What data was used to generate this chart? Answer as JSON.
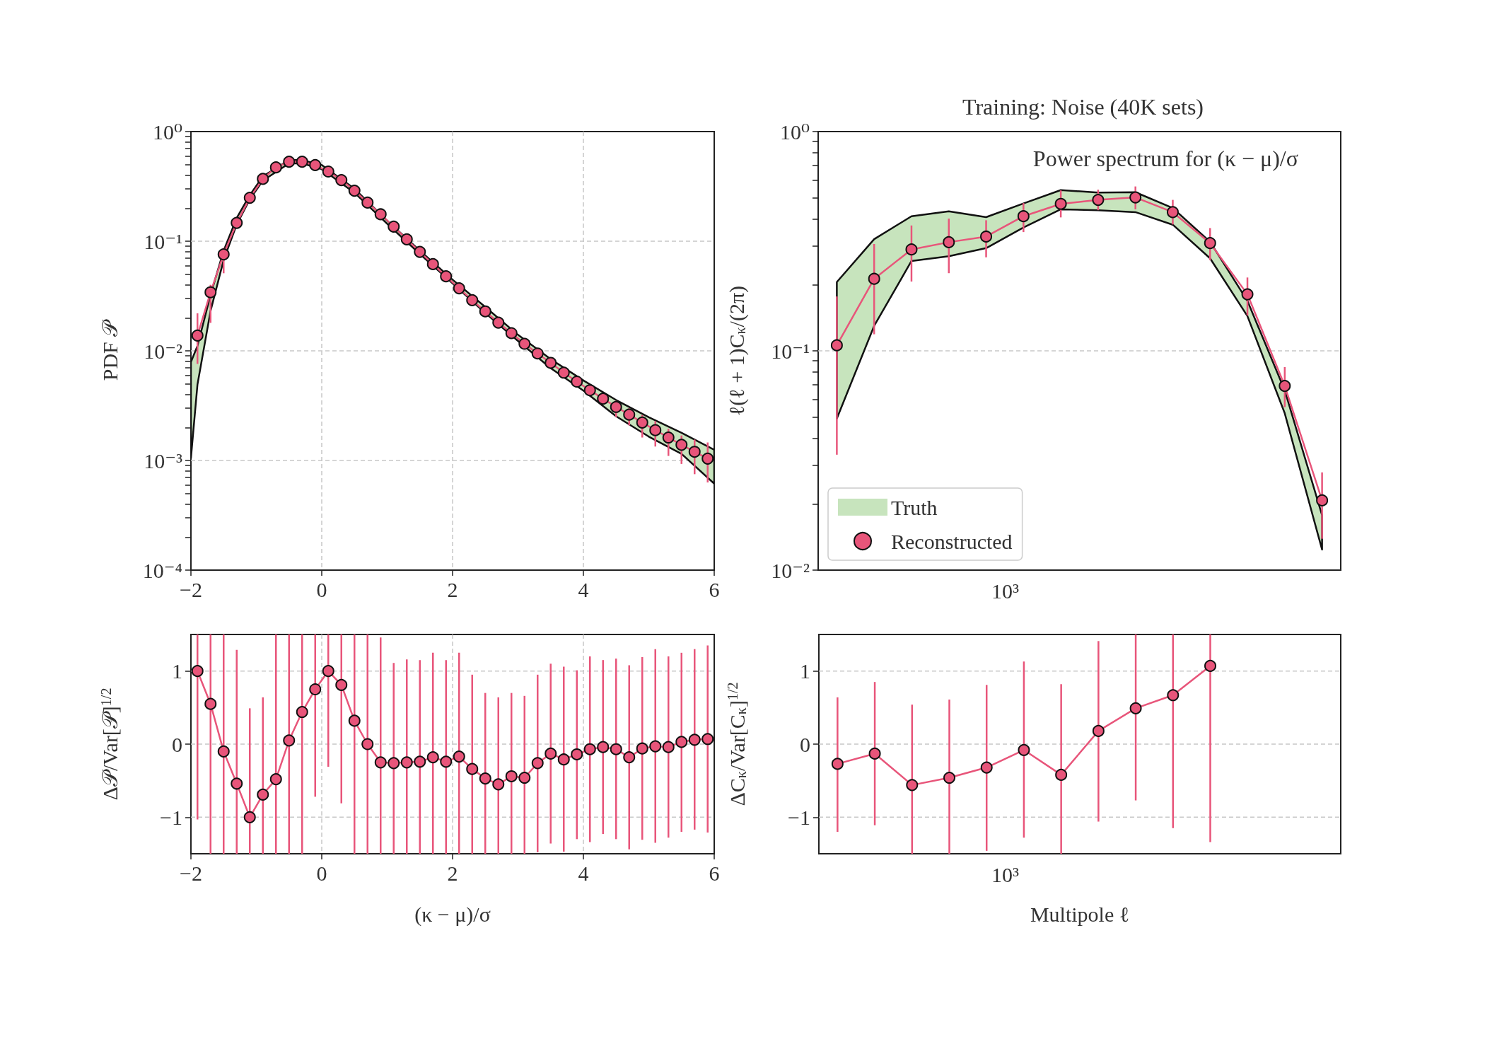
{
  "chart_data": [
    {
      "type": "line",
      "ylabel": "PDF 𝒫",
      "log": "y",
      "grid": true,
      "marker": "circle",
      "line_style": "solid",
      "xlim": [
        -2,
        6
      ],
      "ylim": [
        0.0001,
        1
      ],
      "xticks": [
        -2,
        0,
        2,
        4,
        6
      ],
      "yticks": [
        {
          "value": 0.0001,
          "label": "10⁻⁴"
        },
        {
          "value": 0.001,
          "label": "10⁻³"
        },
        {
          "value": 0.01,
          "label": "10⁻²"
        },
        {
          "value": 0.1,
          "label": "10⁻¹"
        },
        {
          "value": 1,
          "label": "10⁰"
        },
        {
          "value": 0.0002,
          "label": null
        },
        {
          "value": 0.0003,
          "label": null
        },
        {
          "value": 0.0004,
          "label": null
        },
        {
          "value": 0.0005,
          "label": null
        },
        {
          "value": 0.0006,
          "label": null
        },
        {
          "value": 0.0007,
          "label": null
        },
        {
          "value": 0.0008,
          "label": null
        },
        {
          "value": 0.0009,
          "label": null
        },
        {
          "value": 0.002,
          "label": null
        },
        {
          "value": 0.003,
          "label": null
        },
        {
          "value": 0.004,
          "label": null
        },
        {
          "value": 0.005,
          "label": null
        },
        {
          "value": 0.006,
          "label": null
        },
        {
          "value": 0.007,
          "label": null
        },
        {
          "value": 0.008,
          "label": null
        },
        {
          "value": 0.009,
          "label": null
        },
        {
          "value": 0.02,
          "label": null
        },
        {
          "value": 0.03,
          "label": null
        },
        {
          "value": 0.04,
          "label": null
        },
        {
          "value": 0.05,
          "label": null
        },
        {
          "value": 0.06,
          "label": null
        },
        {
          "value": 0.07,
          "label": null
        },
        {
          "value": 0.08,
          "label": null
        },
        {
          "value": 0.09,
          "label": null
        },
        {
          "value": 0.2,
          "label": null
        },
        {
          "value": 0.3,
          "label": null
        },
        {
          "value": 0.4,
          "label": null
        },
        {
          "value": 0.5,
          "label": null
        },
        {
          "value": 0.6,
          "label": null
        },
        {
          "value": 0.7,
          "label": null
        },
        {
          "value": 0.8,
          "label": null
        },
        {
          "value": 0.9,
          "label": null
        }
      ],
      "series": [
        {
          "type": "line",
          "color": "#c7e4bd",
          "x": [
            -2,
            -1.9,
            -1.7,
            -1.5,
            -1.3,
            -1.1,
            -0.9,
            -0.5,
            -0.3,
            0,
            0.5,
            1,
            1.5,
            2,
            2.5,
            3,
            3.5,
            4,
            4.5,
            5,
            5.5,
            6
          ],
          "values": [
            null,
            null,
            null,
            null,
            null,
            null,
            null,
            null,
            null,
            null,
            null,
            null,
            null,
            null,
            null,
            null,
            null,
            null,
            null,
            null,
            null,
            null
          ],
          "upper": [
            0.0079,
            0.0111,
            0.0324,
            0.0819,
            0.163,
            0.263,
            0.39,
            0.549,
            0.549,
            0.495,
            0.301,
            0.154,
            0.0819,
            0.0446,
            0.0251,
            0.014,
            0.0084,
            0.00537,
            0.00356,
            0.00248,
            0.00179,
            0.00125
          ],
          "lower": [
            0.00105,
            0.00493,
            0.0231,
            0.0673,
            0.142,
            0.241,
            0.357,
            0.513,
            0.513,
            0.455,
            0.277,
            0.144,
            0.0765,
            0.0413,
            0.0221,
            0.0123,
            0.00695,
            0.00434,
            0.00253,
            0.00165,
            0.00115,
            0.000615
          ]
        },
        {
          "type": "line",
          "color": "#e8557a",
          "x": [
            -1.9,
            -1.7,
            -1.5,
            -1.3,
            -1.1,
            -0.9,
            -0.7,
            -0.5,
            -0.3,
            -0.1,
            0.1,
            0.3,
            0.5,
            0.7,
            0.9,
            1.1,
            1.3,
            1.5,
            1.7,
            1.9,
            2.1,
            2.3,
            2.5,
            2.7,
            2.9,
            3.1,
            3.3,
            3.5,
            3.7,
            3.9,
            4.1,
            4.3,
            4.5,
            4.7,
            4.9,
            5.1,
            5.3,
            5.5,
            5.7,
            5.9
          ],
          "values": [
            0.0138,
            0.0342,
            0.0759,
            0.147,
            0.249,
            0.37,
            0.471,
            0.531,
            0.531,
            0.495,
            0.432,
            0.361,
            0.289,
            0.225,
            0.176,
            0.136,
            0.104,
            0.0799,
            0.0618,
            0.0478,
            0.0372,
            0.029,
            0.0229,
            0.0181,
            0.0145,
            0.0116,
            0.00946,
            0.00777,
            0.00633,
            0.00524,
            0.00437,
            0.00366,
            0.00308,
            0.00262,
            0.00222,
            0.00189,
            0.00162,
            0.00139,
            0.0012,
            0.00104
          ],
          "errors": [
            [
              0.0076,
              0.022
            ],
            [
              0.018,
              0.04
            ],
            [
              0.051,
              0.087
            ],
            null,
            null,
            null,
            null,
            null,
            null,
            null,
            null,
            null,
            null,
            null,
            null,
            null,
            null,
            null,
            null,
            null,
            null,
            null,
            null,
            null,
            null,
            null,
            null,
            null,
            null,
            null,
            null,
            null,
            [
              0.00248,
              0.0035
            ],
            [
              0.00209,
              0.003
            ],
            [
              0.00162,
              0.00259
            ],
            [
              0.00134,
              0.00228
            ],
            [
              0.0011,
              0.00195
            ],
            [
              0.00093,
              0.00169
            ],
            [
              0.00075,
              0.00155
            ],
            [
              0.00063,
              0.00146
            ]
          ]
        }
      ]
    },
    {
      "type": "line",
      "title": "Training: Noise (40K sets)",
      "annotations": [
        "Power spectrum for (κ − μ)/σ",
        "10³"
      ],
      "ylabel": "ℓ(ℓ + 1)C$_{κ}$/(2π)",
      "log": "y",
      "grid": "y",
      "legend": "bottom left",
      "marker": "circle",
      "line_style": "solid",
      "ylim": [
        0.01,
        1
      ],
      "categories": [
        null,
        null,
        null,
        null,
        null,
        null,
        null,
        null,
        null,
        null,
        null,
        null,
        null,
        null
      ],
      "yticks": [
        {
          "value": 0.01,
          "label": "10⁻²"
        },
        {
          "value": 0.1,
          "label": "10⁻¹"
        },
        {
          "value": 1,
          "label": "10⁰"
        },
        {
          "value": 0.02,
          "label": null
        },
        {
          "value": 0.03,
          "label": null
        },
        {
          "value": 0.04,
          "label": null
        },
        {
          "value": 0.05,
          "label": null
        },
        {
          "value": 0.06,
          "label": null
        },
        {
          "value": 0.07,
          "label": null
        },
        {
          "value": 0.08,
          "label": null
        },
        {
          "value": 0.09,
          "label": null
        },
        {
          "value": 0.2,
          "label": null
        },
        {
          "value": 0.3,
          "label": null
        },
        {
          "value": 0.4,
          "label": null
        },
        {
          "value": 0.5,
          "label": null
        },
        {
          "value": 0.6,
          "label": null
        },
        {
          "value": 0.7,
          "label": null
        },
        {
          "value": 0.8,
          "label": null
        },
        {
          "value": 0.9,
          "label": null
        }
      ],
      "series": [
        {
          "name": "Truth",
          "type": "line",
          "color": "#c7e4bd",
          "values": [
            null,
            null,
            null,
            null,
            null,
            null,
            null,
            null,
            null,
            null,
            null,
            null,
            null,
            null
          ],
          "upper": [
            0.206,
            0.323,
            0.411,
            0.433,
            0.407,
            0.47,
            0.541,
            0.527,
            0.529,
            0.448,
            0.314,
            0.169,
            0.066,
            0.0178
          ],
          "lower": [
            0.0491,
            0.13,
            0.257,
            0.27,
            0.294,
            0.365,
            0.442,
            0.438,
            0.429,
            0.376,
            0.264,
            0.144,
            0.0519,
            0.0124
          ]
        },
        {
          "name": "Reconstructed",
          "type": "line",
          "color": "#e8557a",
          "values": [
            0.106,
            0.213,
            0.29,
            0.313,
            0.332,
            0.411,
            0.468,
            0.488,
            0.501,
            0.429,
            0.31,
            0.181,
            0.0692,
            0.0208
          ],
          "errors": [
            [
              0.0336,
              0.177
            ],
            [
              0.119,
              0.307
            ],
            [
              0.207,
              0.373
            ],
            [
              0.226,
              0.401
            ],
            [
              0.267,
              0.394
            ],
            [
              0.348,
              0.472
            ],
            [
              0.406,
              0.539
            ],
            [
              0.438,
              0.543
            ],
            [
              0.442,
              0.562
            ],
            [
              0.377,
              0.488
            ],
            [
              0.259,
              0.363
            ],
            [
              0.145,
              0.216
            ],
            [
              0.0554,
              0.0843
            ],
            [
              0.0139,
              0.0279
            ]
          ]
        }
      ]
    },
    {
      "type": "line",
      "xlabel": "(κ − μ)/σ",
      "ylabel": "Δ𝒫/Var[𝒫]$^{1/2}$",
      "grid": true,
      "marker": "circle",
      "line_style": "solid",
      "xlim": [
        -2,
        6
      ],
      "ylim": [
        -1.5,
        1.5
      ],
      "xticks": [
        -2,
        0,
        2,
        4,
        6
      ],
      "yticks": [
        -1,
        0,
        1
      ],
      "series": [
        {
          "type": "line",
          "color": "#e8557a",
          "x": [
            -1.9,
            -1.7,
            -1.5,
            -1.3,
            -1.1,
            -0.9,
            -0.7,
            -0.5,
            -0.3,
            -0.1,
            0.1,
            0.3,
            0.5,
            0.7,
            0.9,
            1.1,
            1.3,
            1.5,
            1.7,
            1.9,
            2.1,
            2.3,
            2.5,
            2.7,
            2.9,
            3.1,
            3.3,
            3.5,
            3.7,
            3.9,
            4.1,
            4.3,
            4.5,
            4.7,
            4.9,
            5.1,
            5.3,
            5.5,
            5.7,
            5.9
          ],
          "values": [
            1.0,
            0.55,
            -0.1,
            -0.54,
            -1.0,
            -0.69,
            -0.48,
            0.05,
            0.44,
            0.75,
            1.0,
            0.81,
            0.32,
            0.0,
            -0.25,
            -0.26,
            -0.25,
            -0.24,
            -0.18,
            -0.24,
            -0.17,
            -0.34,
            -0.47,
            -0.55,
            -0.44,
            -0.46,
            -0.26,
            -0.13,
            -0.21,
            -0.14,
            -0.07,
            -0.04,
            -0.07,
            -0.18,
            -0.06,
            -0.03,
            -0.04,
            0.03,
            0.06,
            0.07
          ],
          "errors": [
            [
              -1.03,
              1.5
            ],
            [
              -1.5,
              1.5
            ],
            [
              -1.5,
              1.5
            ],
            [
              -1.5,
              1.29
            ],
            [
              -1.5,
              0.49
            ],
            [
              -1.5,
              0.64
            ],
            [
              -1.5,
              1.5
            ],
            [
              -1.5,
              1.5
            ],
            [
              -1.5,
              1.5
            ],
            [
              -0.72,
              1.5
            ],
            [
              -0.31,
              1.5
            ],
            [
              -0.81,
              1.5
            ],
            [
              -1.5,
              1.5
            ],
            [
              -1.5,
              1.5
            ],
            [
              -1.5,
              1.46
            ],
            [
              -1.5,
              1.11
            ],
            [
              -1.5,
              1.16
            ],
            [
              -1.5,
              1.15
            ],
            [
              -1.5,
              1.25
            ],
            [
              -1.5,
              1.15
            ],
            [
              -1.5,
              1.25
            ],
            [
              -1.5,
              0.95
            ],
            [
              -1.5,
              0.7
            ],
            [
              -1.5,
              0.64
            ],
            [
              -1.5,
              0.7
            ],
            [
              -1.5,
              0.66
            ],
            [
              -1.48,
              0.95
            ],
            [
              -1.36,
              1.1
            ],
            [
              -1.47,
              1.06
            ],
            [
              -1.3,
              1.01
            ],
            [
              -1.34,
              1.2
            ],
            [
              -1.23,
              1.15
            ],
            [
              -1.3,
              1.17
            ],
            [
              -1.44,
              1.08
            ],
            [
              -1.31,
              1.19
            ],
            [
              -1.35,
              1.3
            ],
            [
              -1.28,
              1.2
            ],
            [
              -1.2,
              1.25
            ],
            [
              -1.17,
              1.3
            ],
            [
              -1.21,
              1.35
            ]
          ]
        }
      ]
    },
    {
      "type": "line",
      "annotations": [
        "10³"
      ],
      "xlabel": "Multipole ℓ",
      "ylabel": "ΔC$_{κ}$/Var[C$_{κ}$]$^{1/2}$",
      "grid": "y",
      "marker": "circle",
      "line_style": "solid",
      "ylim": [
        -1.5,
        1.5
      ],
      "categories": [
        null,
        null,
        null,
        null,
        null,
        null,
        null,
        null,
        null,
        null,
        null,
        null,
        null,
        null
      ],
      "yticks": [
        -1,
        0,
        1
      ],
      "series": [
        {
          "type": "line",
          "color": "#e8557a",
          "values": [
            -0.27,
            -0.13,
            -0.56,
            -0.46,
            -0.32,
            -0.08,
            -0.42,
            0.18,
            0.49,
            0.67,
            1.07,
            null,
            null,
            null
          ],
          "errors": [
            [
              -1.2,
              0.64
            ],
            [
              -1.11,
              0.85
            ],
            [
              -1.5,
              0.54
            ],
            [
              -1.5,
              0.61
            ],
            [
              -1.46,
              0.81
            ],
            [
              -1.28,
              1.13
            ],
            [
              -1.5,
              0.82
            ],
            [
              -1.06,
              1.41
            ],
            [
              -0.77,
              1.5
            ],
            [
              -1.15,
              1.5
            ],
            [
              -1.34,
              1.5
            ],
            null,
            null,
            null
          ]
        }
      ]
    }
  ]
}
